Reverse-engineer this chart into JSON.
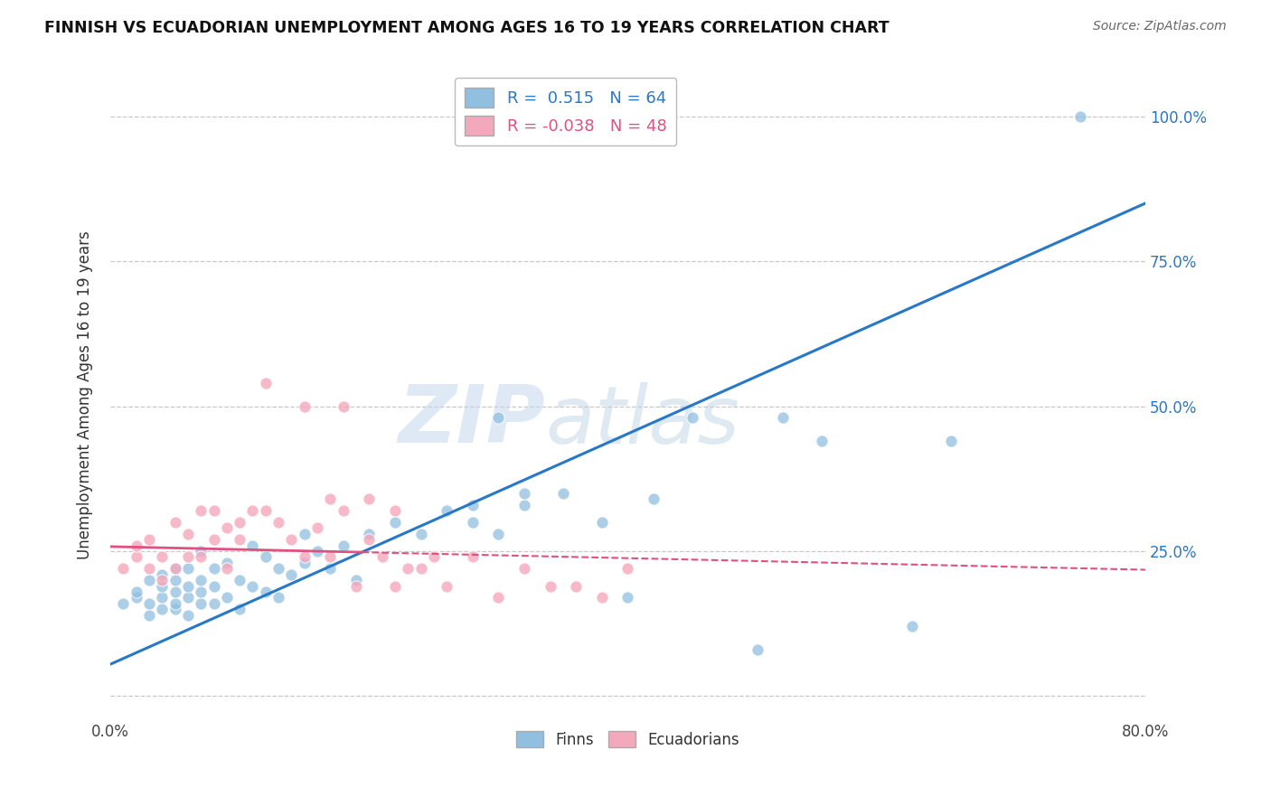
{
  "title": "FINNISH VS ECUADORIAN UNEMPLOYMENT AMONG AGES 16 TO 19 YEARS CORRELATION CHART",
  "source": "Source: ZipAtlas.com",
  "ylabel": "Unemployment Among Ages 16 to 19 years",
  "xlim": [
    0.0,
    0.8
  ],
  "ylim": [
    -0.04,
    1.08
  ],
  "xticks": [
    0.0,
    0.1,
    0.2,
    0.3,
    0.4,
    0.5,
    0.6,
    0.7,
    0.8
  ],
  "xticklabels": [
    "0.0%",
    "",
    "",
    "",
    "",
    "",
    "",
    "",
    "80.0%"
  ],
  "ytick_positions": [
    0.0,
    0.25,
    0.5,
    0.75,
    1.0
  ],
  "yticklabels": [
    "",
    "25.0%",
    "50.0%",
    "75.0%",
    "100.0%"
  ],
  "blue_R": "0.515",
  "blue_N": "64",
  "pink_R": "-0.038",
  "pink_N": "48",
  "blue_color": "#90bfe0",
  "pink_color": "#f4a8bc",
  "blue_line_color": "#2878c8",
  "pink_line_color": "#e05080",
  "watermark_zip": "ZIP",
  "watermark_atlas": "atlas",
  "background_color": "#ffffff",
  "blue_scatter_x": [
    0.01,
    0.02,
    0.02,
    0.03,
    0.03,
    0.03,
    0.04,
    0.04,
    0.04,
    0.04,
    0.05,
    0.05,
    0.05,
    0.05,
    0.05,
    0.06,
    0.06,
    0.06,
    0.06,
    0.07,
    0.07,
    0.07,
    0.07,
    0.08,
    0.08,
    0.08,
    0.09,
    0.09,
    0.1,
    0.1,
    0.11,
    0.11,
    0.12,
    0.12,
    0.13,
    0.13,
    0.14,
    0.15,
    0.15,
    0.16,
    0.17,
    0.18,
    0.19,
    0.2,
    0.22,
    0.24,
    0.26,
    0.28,
    0.3,
    0.32,
    0.35,
    0.38,
    0.4,
    0.42,
    0.45,
    0.5,
    0.52,
    0.55,
    0.62,
    0.65,
    0.28,
    0.32,
    0.3,
    0.75
  ],
  "blue_scatter_y": [
    0.16,
    0.17,
    0.18,
    0.14,
    0.16,
    0.2,
    0.15,
    0.17,
    0.19,
    0.21,
    0.15,
    0.16,
    0.18,
    0.2,
    0.22,
    0.14,
    0.17,
    0.19,
    0.22,
    0.16,
    0.18,
    0.2,
    0.25,
    0.16,
    0.19,
    0.22,
    0.17,
    0.23,
    0.15,
    0.2,
    0.19,
    0.26,
    0.18,
    0.24,
    0.17,
    0.22,
    0.21,
    0.23,
    0.28,
    0.25,
    0.22,
    0.26,
    0.2,
    0.28,
    0.3,
    0.28,
    0.32,
    0.3,
    0.28,
    0.33,
    0.35,
    0.3,
    0.17,
    0.34,
    0.48,
    0.08,
    0.48,
    0.44,
    0.12,
    0.44,
    0.33,
    0.35,
    0.48,
    1.0
  ],
  "pink_scatter_x": [
    0.01,
    0.02,
    0.02,
    0.03,
    0.03,
    0.04,
    0.04,
    0.05,
    0.05,
    0.06,
    0.06,
    0.07,
    0.07,
    0.08,
    0.08,
    0.09,
    0.09,
    0.1,
    0.1,
    0.11,
    0.12,
    0.13,
    0.14,
    0.15,
    0.16,
    0.17,
    0.18,
    0.19,
    0.2,
    0.21,
    0.22,
    0.23,
    0.24,
    0.25,
    0.26,
    0.28,
    0.3,
    0.32,
    0.34,
    0.36,
    0.38,
    0.4,
    0.12,
    0.15,
    0.17,
    0.18,
    0.2,
    0.22
  ],
  "pink_scatter_y": [
    0.22,
    0.24,
    0.26,
    0.22,
    0.27,
    0.2,
    0.24,
    0.22,
    0.3,
    0.24,
    0.28,
    0.24,
    0.32,
    0.27,
    0.32,
    0.29,
    0.22,
    0.27,
    0.3,
    0.32,
    0.32,
    0.3,
    0.27,
    0.24,
    0.29,
    0.24,
    0.32,
    0.19,
    0.27,
    0.24,
    0.19,
    0.22,
    0.22,
    0.24,
    0.19,
    0.24,
    0.17,
    0.22,
    0.19,
    0.19,
    0.17,
    0.22,
    0.54,
    0.5,
    0.34,
    0.5,
    0.34,
    0.32
  ],
  "blue_trend_x": [
    0.0,
    0.8
  ],
  "blue_trend_y": [
    0.055,
    0.85
  ],
  "pink_trend_x": [
    0.0,
    0.8
  ],
  "pink_trend_y": [
    0.258,
    0.218
  ],
  "grid_color": "#c8c8c8",
  "grid_linestyle": "--"
}
